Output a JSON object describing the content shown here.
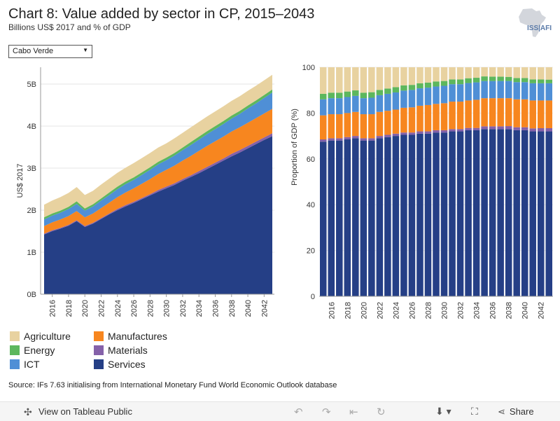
{
  "header": {
    "title": "Chart 8: Value added by sector in CP, 2015–2043",
    "subtitle": "Billions US$ 2017 and % of GDP",
    "logo_text": "ISS|AFI"
  },
  "filter": {
    "selected": "Cabo Verde"
  },
  "colors": {
    "Agriculture": "#e8d2a0",
    "Energy": "#5db75d",
    "ICT": "#4f8fd6",
    "Manufactures": "#f7861f",
    "Materials": "#8561a9",
    "Services": "#253f86"
  },
  "chart_data": [
    {
      "type": "area",
      "stacked": true,
      "ylabel": "US$ 2017",
      "ylim": [
        0,
        5.4
      ],
      "yticks": [
        0,
        1,
        2,
        3,
        4,
        5
      ],
      "ytick_labels": [
        "0B",
        "1B",
        "2B",
        "3B",
        "4B",
        "5B"
      ],
      "x": [
        2015,
        2016,
        2017,
        2018,
        2019,
        2020,
        2021,
        2022,
        2023,
        2024,
        2025,
        2026,
        2027,
        2028,
        2029,
        2030,
        2031,
        2032,
        2033,
        2034,
        2035,
        2036,
        2037,
        2038,
        2039,
        2040,
        2041,
        2042,
        2043
      ],
      "xtick_labels": [
        "2016",
        "2018",
        "2020",
        "2022",
        "2024",
        "2026",
        "2028",
        "2030",
        "2032",
        "2034",
        "2036",
        "2038",
        "2040",
        "2042"
      ],
      "series": [
        {
          "name": "Services",
          "values": [
            1.42,
            1.5,
            1.56,
            1.63,
            1.74,
            1.6,
            1.68,
            1.79,
            1.9,
            2.0,
            2.09,
            2.17,
            2.26,
            2.35,
            2.44,
            2.52,
            2.6,
            2.7,
            2.79,
            2.88,
            2.98,
            3.08,
            3.18,
            3.28,
            3.37,
            3.47,
            3.57,
            3.67,
            3.76
          ]
        },
        {
          "name": "Materials",
          "values": [
            0.02,
            0.02,
            0.02,
            0.02,
            0.02,
            0.02,
            0.02,
            0.02,
            0.02,
            0.03,
            0.03,
            0.03,
            0.03,
            0.03,
            0.04,
            0.04,
            0.04,
            0.04,
            0.04,
            0.05,
            0.05,
            0.05,
            0.05,
            0.06,
            0.06,
            0.06,
            0.06,
            0.06,
            0.07
          ]
        },
        {
          "name": "Manufactures",
          "values": [
            0.18,
            0.19,
            0.2,
            0.21,
            0.22,
            0.21,
            0.22,
            0.24,
            0.26,
            0.28,
            0.3,
            0.32,
            0.34,
            0.36,
            0.38,
            0.4,
            0.42,
            0.44,
            0.46,
            0.48,
            0.5,
            0.51,
            0.52,
            0.53,
            0.54,
            0.55,
            0.56,
            0.57,
            0.58
          ]
        },
        {
          "name": "ICT",
          "values": [
            0.16,
            0.16,
            0.16,
            0.17,
            0.17,
            0.16,
            0.17,
            0.18,
            0.18,
            0.19,
            0.2,
            0.2,
            0.21,
            0.22,
            0.23,
            0.23,
            0.24,
            0.25,
            0.26,
            0.27,
            0.28,
            0.29,
            0.3,
            0.31,
            0.32,
            0.34,
            0.35,
            0.37,
            0.39
          ]
        },
        {
          "name": "Energy",
          "values": [
            0.05,
            0.05,
            0.05,
            0.05,
            0.06,
            0.05,
            0.05,
            0.05,
            0.06,
            0.06,
            0.06,
            0.06,
            0.06,
            0.06,
            0.06,
            0.06,
            0.06,
            0.06,
            0.07,
            0.07,
            0.07,
            0.07,
            0.07,
            0.07,
            0.07,
            0.07,
            0.07,
            0.07,
            0.07
          ]
        },
        {
          "name": "Agriculture",
          "values": [
            0.3,
            0.31,
            0.32,
            0.33,
            0.34,
            0.32,
            0.32,
            0.33,
            0.33,
            0.33,
            0.33,
            0.34,
            0.34,
            0.34,
            0.34,
            0.34,
            0.35,
            0.35,
            0.35,
            0.35,
            0.35,
            0.35,
            0.35,
            0.35,
            0.35,
            0.35,
            0.35,
            0.35,
            0.35
          ]
        }
      ]
    },
    {
      "type": "bar",
      "stacked": true,
      "ylabel": "Proportion of GDP (%)",
      "ylim": [
        0,
        100
      ],
      "yticks": [
        0,
        20,
        40,
        60,
        80,
        100
      ],
      "ytick_labels": [
        "0",
        "20",
        "40",
        "60",
        "80",
        "100"
      ],
      "x": [
        2015,
        2016,
        2017,
        2018,
        2019,
        2020,
        2021,
        2022,
        2023,
        2024,
        2025,
        2026,
        2027,
        2028,
        2029,
        2030,
        2031,
        2032,
        2033,
        2034,
        2035,
        2036,
        2037,
        2038,
        2039,
        2040,
        2041,
        2042,
        2043
      ],
      "xtick_labels": [
        "2016",
        "2018",
        "2020",
        "2022",
        "2024",
        "2026",
        "2028",
        "2030",
        "2032",
        "2034",
        "2036",
        "2038",
        "2040",
        "2042"
      ],
      "series": [
        {
          "name": "Services",
          "values": [
            67.5,
            68,
            68,
            68.5,
            69,
            68,
            68,
            69,
            69.5,
            70,
            70.5,
            70.5,
            71,
            71,
            71.5,
            71.5,
            72,
            72,
            72.5,
            72.5,
            73,
            73,
            73,
            73,
            72.5,
            72.5,
            72,
            72,
            72
          ]
        },
        {
          "name": "Materials",
          "values": [
            1,
            1,
            1,
            1,
            1,
            1,
            1,
            1,
            1,
            1,
            1,
            1,
            1,
            1,
            1,
            1,
            1,
            1,
            1,
            1,
            1.2,
            1.2,
            1.2,
            1.3,
            1.3,
            1.3,
            1.3,
            1.4,
            1.4
          ]
        },
        {
          "name": "Manufactures",
          "values": [
            10.5,
            10.5,
            10.5,
            10.5,
            10.5,
            10.5,
            10.5,
            10.5,
            10.5,
            10.5,
            10.8,
            11,
            11.2,
            11.5,
            11.5,
            11.8,
            12,
            12,
            12,
            12.3,
            12.3,
            12.3,
            12.3,
            12.2,
            12.2,
            12.2,
            12.2,
            12.1,
            12.1
          ]
        },
        {
          "name": "ICT",
          "values": [
            7,
            7,
            7,
            7,
            7,
            7,
            7.2,
            7.3,
            7.4,
            7.5,
            7.5,
            7.6,
            7.6,
            7.6,
            7.6,
            7.6,
            7.6,
            7.6,
            7.6,
            7.6,
            7.5,
            7.5,
            7.5,
            7.5,
            7.5,
            7.5,
            7.5,
            7.5,
            7.5
          ]
        },
        {
          "name": "Energy",
          "values": [
            2.4,
            2.4,
            2.4,
            2.4,
            2.4,
            2.4,
            2.4,
            2.3,
            2.3,
            2.3,
            2.3,
            2.2,
            2.2,
            2.2,
            2.2,
            2.1,
            2.1,
            2.1,
            2.1,
            2.0,
            2.0,
            1.9,
            1.9,
            1.8,
            1.8,
            1.8,
            1.7,
            1.7,
            1.6
          ]
        },
        {
          "name": "Agriculture",
          "values": [
            11.6,
            11.1,
            11.1,
            10.6,
            10.1,
            11.1,
            10.9,
            9.9,
            9.3,
            8.7,
            7.9,
            7.7,
            7.0,
            6.7,
            6.2,
            6.0,
            5.3,
            5.3,
            4.8,
            4.6,
            4.0,
            4.1,
            4.1,
            4.2,
            4.7,
            4.7,
            5.3,
            5.3,
            5.4
          ]
        }
      ]
    }
  ],
  "legend": {
    "items": [
      "Agriculture",
      "Energy",
      "ICT",
      "Manufactures",
      "Materials",
      "Services"
    ]
  },
  "source": "Source: IFs 7.63 initialising from International Monetary Fund World Economic Outlook database",
  "footer": {
    "view_label": "View on Tableau Public",
    "share_label": "Share",
    "icons": [
      "tableau-icon",
      "undo-icon",
      "redo-icon",
      "revert-icon",
      "refresh-icon",
      "download-icon",
      "fullscreen-icon",
      "share-icon"
    ]
  }
}
